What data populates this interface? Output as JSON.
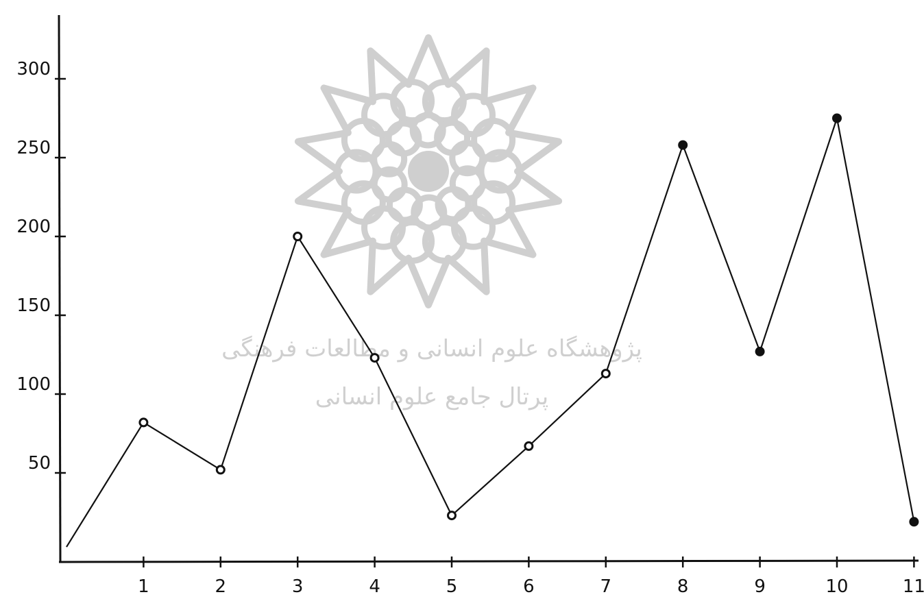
{
  "watermark": {
    "line1": "پژوهشگاه علوم انسانی و مطالعات فرهنگی",
    "line2": "پرتال جامع علوم انسانی",
    "color": "#cfcfcf",
    "icon": "rosette-logo-icon"
  },
  "chart_data": {
    "type": "line",
    "title": "",
    "xlabel": "",
    "ylabel": "",
    "x": [
      0,
      1,
      2,
      3,
      4,
      5,
      6,
      7,
      8,
      9,
      10,
      11
    ],
    "x_ticks": [
      1,
      2,
      3,
      4,
      5,
      6,
      7,
      8,
      9,
      10,
      11
    ],
    "x_tick_labels": [
      "1",
      "2",
      "3",
      "4",
      "5",
      "6",
      "7",
      "8",
      "9",
      "10",
      "11"
    ],
    "y_ticks": [
      50,
      100,
      150,
      200,
      250,
      300
    ],
    "y_tick_labels": [
      "50",
      "100",
      "150",
      "200",
      "250",
      "300"
    ],
    "xlim": [
      0,
      11.2
    ],
    "ylim": [
      0,
      340
    ],
    "grid": false,
    "series": [
      {
        "values": [
          3,
          82,
          52,
          200,
          123,
          23,
          67,
          113,
          258,
          127,
          275,
          19
        ],
        "marker_styles": [
          "none",
          "open",
          "open",
          "open",
          "open",
          "open",
          "open",
          "open",
          "filled",
          "filled",
          "filled",
          "filled"
        ]
      }
    ],
    "line_color": "#111111"
  }
}
